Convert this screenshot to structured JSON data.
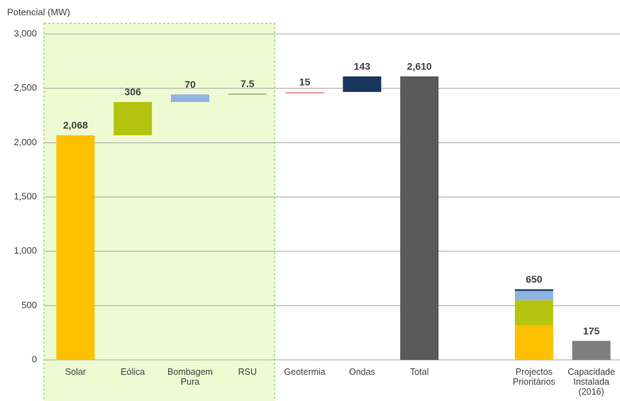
{
  "chart_data": {
    "type": "waterfall",
    "y_label": "Potencial (MW)",
    "categories": [
      "Solar",
      "Eólica",
      "Bombagem Pura",
      "RSU",
      "Geotermia",
      "Ondas",
      "Total",
      null,
      "Projectos Prioritários",
      "Capacidade Instalada (2016)"
    ],
    "values": [
      2068,
      306,
      70,
      7.5,
      15,
      143,
      2610,
      null,
      650,
      175
    ],
    "value_labels": [
      "2,068",
      "306",
      "70",
      "7.5",
      "15",
      "143",
      "2,610",
      null,
      "650",
      "175"
    ],
    "measure": [
      "relative",
      "relative",
      "relative",
      "relative",
      "relative",
      "relative",
      "total",
      null,
      "total",
      "total"
    ],
    "colors": [
      "#ffc000",
      "#b5c40e",
      "#8eb4e3",
      "#9aa86b",
      "#e6a19a",
      "#17375e",
      "#595959",
      null,
      null,
      "#7f7f7f"
    ],
    "segments": [
      null,
      null,
      null,
      null,
      null,
      null,
      null,
      null,
      [
        {
          "value": 315,
          "color": "#ffc000"
        },
        {
          "value": 235,
          "color": "#b5c40e"
        },
        {
          "value": 85,
          "color": "#8eb4e3"
        },
        {
          "value": 15,
          "color": "#17375e"
        }
      ],
      null
    ],
    "highlight_categories": [
      0,
      3
    ],
    "highlight_color": "#eefad2",
    "ylim": [
      0,
      3000
    ],
    "yticks": [
      0,
      500,
      {
        "value": 1000,
        "label": "1,000"
      },
      {
        "value": 1500,
        "label": "1,500"
      },
      {
        "value": 2000,
        "label": "2,000"
      },
      {
        "value": 2500,
        "label": "2,500"
      },
      {
        "value": 3000,
        "label": "3,000"
      }
    ],
    "grid": true
  }
}
